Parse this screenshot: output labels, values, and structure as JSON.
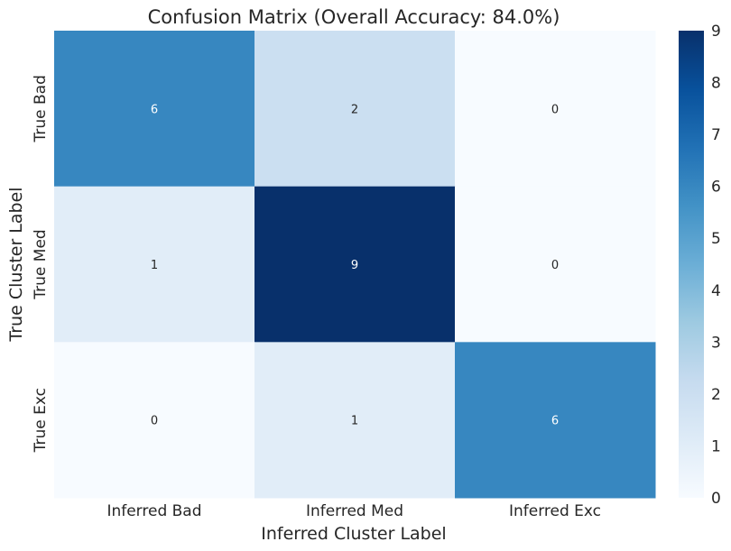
{
  "chart_data": {
    "type": "heatmap",
    "title": "Confusion Matrix (Overall Accuracy: 84.0%)",
    "xlabel": "Inferred Cluster Label",
    "ylabel": "True Cluster Label",
    "x_categories": [
      "Inferred Bad",
      "Inferred Med",
      "Inferred Exc"
    ],
    "y_categories": [
      "True Bad",
      "True Med",
      "True Exc"
    ],
    "values": [
      [
        6,
        2,
        0
      ],
      [
        1,
        9,
        0
      ],
      [
        0,
        1,
        6
      ]
    ],
    "colorbar": {
      "min": 0,
      "max": 9,
      "ticks": [
        0,
        1,
        2,
        3,
        4,
        5,
        6,
        7,
        8,
        9
      ]
    },
    "colormap": "Blues",
    "colors": {
      "low": "#f7fbff",
      "high": "#08306b"
    }
  }
}
